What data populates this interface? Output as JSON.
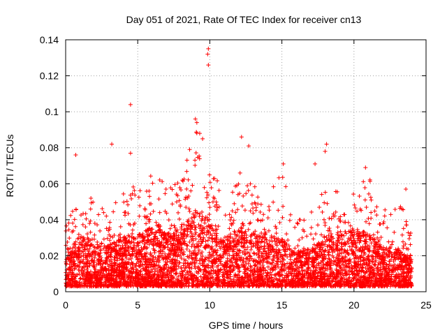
{
  "chart_data": {
    "type": "scatter",
    "title": "Day 051 of 2021, Rate Of TEC Index for receiver cn13",
    "xlabel": "GPS time / hours",
    "ylabel": "ROTI / TECUs",
    "xlim": [
      0,
      25
    ],
    "ylim": [
      0,
      0.14
    ],
    "xticks": [
      0,
      5,
      10,
      15,
      20,
      25
    ],
    "xtick_labels": [
      "0",
      "5",
      "10",
      "15",
      "20",
      "25"
    ],
    "yticks": [
      0,
      0.02,
      0.04,
      0.06,
      0.08,
      0.1,
      0.12,
      0.14
    ],
    "ytick_labels": [
      "0",
      "0.02",
      "0.04",
      "0.06",
      "0.08",
      "0.1",
      "0.12",
      "0.14"
    ],
    "grid": true,
    "marker": "+",
    "series_color": "#ff0000",
    "x_data_range": [
      0,
      24
    ],
    "density_profile": [
      {
        "x": 0.0,
        "p90": 0.022,
        "max": 0.038
      },
      {
        "x": 0.5,
        "p90": 0.026,
        "max": 0.045
      },
      {
        "x": 1.0,
        "p90": 0.032,
        "max": 0.06
      },
      {
        "x": 2.0,
        "p90": 0.028,
        "max": 0.05
      },
      {
        "x": 3.0,
        "p90": 0.026,
        "max": 0.045
      },
      {
        "x": 4.0,
        "p90": 0.03,
        "max": 0.055
      },
      {
        "x": 5.0,
        "p90": 0.032,
        "max": 0.06
      },
      {
        "x": 6.0,
        "p90": 0.036,
        "max": 0.065
      },
      {
        "x": 7.0,
        "p90": 0.034,
        "max": 0.06
      },
      {
        "x": 8.0,
        "p90": 0.036,
        "max": 0.065
      },
      {
        "x": 9.0,
        "p90": 0.045,
        "max": 0.095
      },
      {
        "x": 10.0,
        "p90": 0.04,
        "max": 0.07
      },
      {
        "x": 11.0,
        "p90": 0.03,
        "max": 0.055
      },
      {
        "x": 12.0,
        "p90": 0.036,
        "max": 0.06
      },
      {
        "x": 13.0,
        "p90": 0.034,
        "max": 0.06
      },
      {
        "x": 14.0,
        "p90": 0.032,
        "max": 0.05
      },
      {
        "x": 15.0,
        "p90": 0.03,
        "max": 0.07
      },
      {
        "x": 16.0,
        "p90": 0.022,
        "max": 0.04
      },
      {
        "x": 17.0,
        "p90": 0.024,
        "max": 0.045
      },
      {
        "x": 18.0,
        "p90": 0.03,
        "max": 0.06
      },
      {
        "x": 19.0,
        "p90": 0.034,
        "max": 0.055
      },
      {
        "x": 20.0,
        "p90": 0.036,
        "max": 0.06
      },
      {
        "x": 21.0,
        "p90": 0.032,
        "max": 0.065
      },
      {
        "x": 22.0,
        "p90": 0.026,
        "max": 0.045
      },
      {
        "x": 23.0,
        "p90": 0.024,
        "max": 0.055
      },
      {
        "x": 24.0,
        "p90": 0.02,
        "max": 0.035
      }
    ],
    "outliers": [
      {
        "x": 9.9,
        "y": 0.135
      },
      {
        "x": 9.85,
        "y": 0.132
      },
      {
        "x": 9.9,
        "y": 0.126
      },
      {
        "x": 4.5,
        "y": 0.104
      },
      {
        "x": 9.0,
        "y": 0.096
      },
      {
        "x": 9.1,
        "y": 0.094
      },
      {
        "x": 9.3,
        "y": 0.088
      },
      {
        "x": 9.5,
        "y": 0.085
      },
      {
        "x": 12.2,
        "y": 0.086
      },
      {
        "x": 3.2,
        "y": 0.082
      },
      {
        "x": 18.1,
        "y": 0.082
      },
      {
        "x": 12.7,
        "y": 0.081
      },
      {
        "x": 8.6,
        "y": 0.079
      },
      {
        "x": 18.0,
        "y": 0.078
      },
      {
        "x": 4.5,
        "y": 0.077
      },
      {
        "x": 0.7,
        "y": 0.076
      },
      {
        "x": 15.1,
        "y": 0.071
      },
      {
        "x": 17.3,
        "y": 0.071
      },
      {
        "x": 20.8,
        "y": 0.069
      },
      {
        "x": 12.1,
        "y": 0.066
      },
      {
        "x": 23.6,
        "y": 0.057
      }
    ]
  }
}
